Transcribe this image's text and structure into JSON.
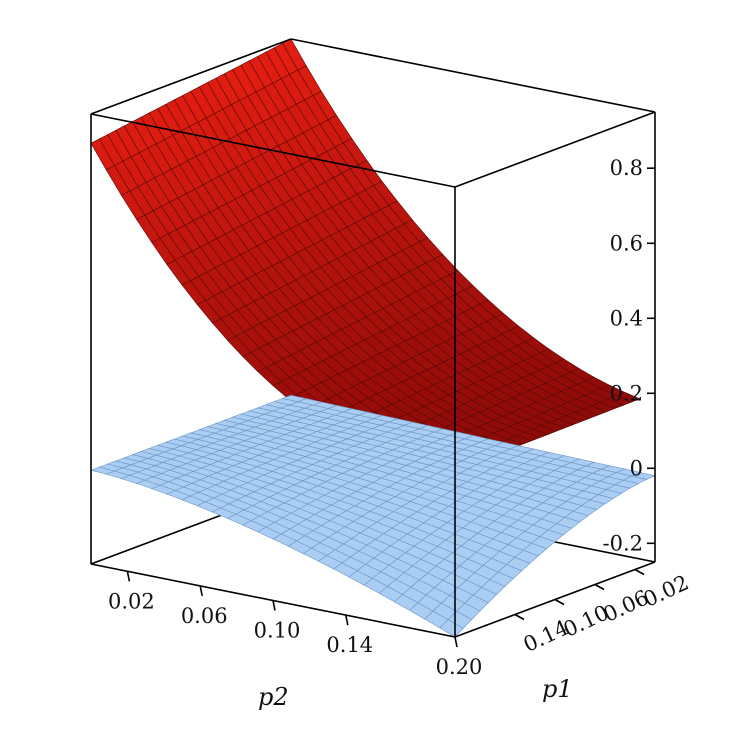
{
  "chart_data": {
    "type": "surface3d",
    "title": "",
    "axes": {
      "x": {
        "label": "p1",
        "range": [
          0.0,
          0.2
        ],
        "ticks": [
          "0.02",
          "0.06",
          "0.10",
          "0.14"
        ]
      },
      "y": {
        "label": "p2",
        "range": [
          0.0,
          0.2
        ],
        "ticks": [
          "0.02",
          "0.06",
          "0.10",
          "0.14",
          "0.20"
        ]
      },
      "z": {
        "label": "",
        "range": [
          -0.25,
          0.95
        ],
        "ticks": [
          "-0.2",
          "0",
          "0.2",
          "0.4",
          "0.6",
          "0.8"
        ]
      }
    },
    "grid": false,
    "series": [
      {
        "surface": "upper",
        "color": "#c8140c",
        "corner_values": {
          "p1_0.00_p2_0.00": 0.95,
          "p1_0.20_p2_0.00": 0.87,
          "p1_0.00_p2_0.20": 0.17,
          "p1_0.20_p2_0.20": 0.17
        }
      },
      {
        "surface": "lower",
        "color": "#a9cdf3",
        "corner_values": {
          "p1_0.00_p2_0.00": 0.0,
          "p1_0.20_p2_0.00": 0.0,
          "p1_0.00_p2_0.20": -0.02,
          "p1_0.20_p2_0.20": -0.25
        }
      }
    ]
  }
}
